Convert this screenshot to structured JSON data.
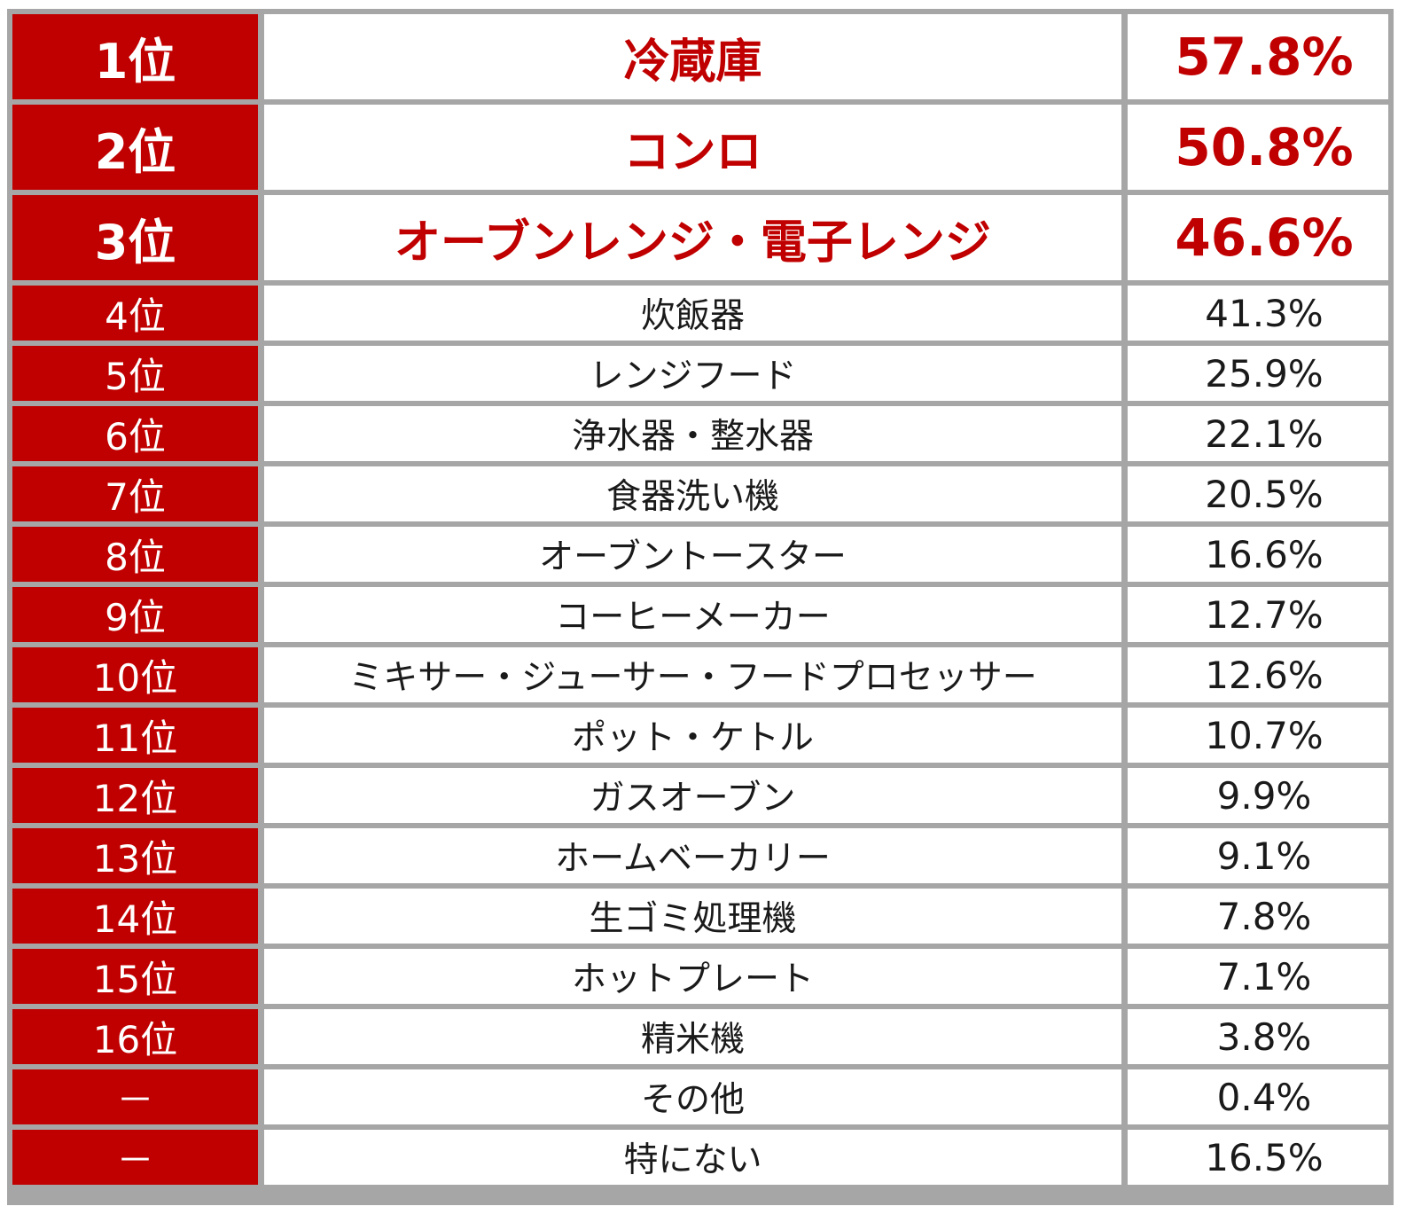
{
  "colors": {
    "rank_bg": "#c00000",
    "highlight_text": "#c00000",
    "grid": "#a6a6a6",
    "text": "#1a1a1a"
  },
  "chart_data": {
    "type": "table",
    "columns": [
      "rank",
      "item",
      "percent"
    ],
    "rows": [
      {
        "rank": "1位",
        "item": "冷蔵庫",
        "percent": "57.8%",
        "value": 57.8,
        "highlight": true
      },
      {
        "rank": "2位",
        "item": "コンロ",
        "percent": "50.8%",
        "value": 50.8,
        "highlight": true
      },
      {
        "rank": "3位",
        "item": "オーブンレンジ・電子レンジ",
        "percent": "46.6%",
        "value": 46.6,
        "highlight": true
      },
      {
        "rank": "4位",
        "item": "炊飯器",
        "percent": "41.3%",
        "value": 41.3
      },
      {
        "rank": "5位",
        "item": "レンジフード",
        "percent": "25.9%",
        "value": 25.9
      },
      {
        "rank": "6位",
        "item": "浄水器・整水器",
        "percent": "22.1%",
        "value": 22.1
      },
      {
        "rank": "7位",
        "item": "食器洗い機",
        "percent": "20.5%",
        "value": 20.5
      },
      {
        "rank": "8位",
        "item": "オーブントースター",
        "percent": "16.6%",
        "value": 16.6
      },
      {
        "rank": "9位",
        "item": "コーヒーメーカー",
        "percent": "12.7%",
        "value": 12.7
      },
      {
        "rank": "10位",
        "item": "ミキサー・ジューサー・フードプロセッサー",
        "percent": "12.6%",
        "value": 12.6
      },
      {
        "rank": "11位",
        "item": "ポット・ケトル",
        "percent": "10.7%",
        "value": 10.7
      },
      {
        "rank": "12位",
        "item": "ガスオーブン",
        "percent": "9.9%",
        "value": 9.9
      },
      {
        "rank": "13位",
        "item": "ホームベーカリー",
        "percent": "9.1%",
        "value": 9.1
      },
      {
        "rank": "14位",
        "item": "生ゴミ処理機",
        "percent": "7.8%",
        "value": 7.8
      },
      {
        "rank": "15位",
        "item": "ホットプレート",
        "percent": "7.1%",
        "value": 7.1
      },
      {
        "rank": "16位",
        "item": "精米機",
        "percent": "3.8%",
        "value": 3.8
      },
      {
        "rank": "－",
        "item": "その他",
        "percent": "0.4%",
        "value": 0.4
      },
      {
        "rank": "－",
        "item": "特にない",
        "percent": "16.5%",
        "value": 16.5
      }
    ]
  }
}
